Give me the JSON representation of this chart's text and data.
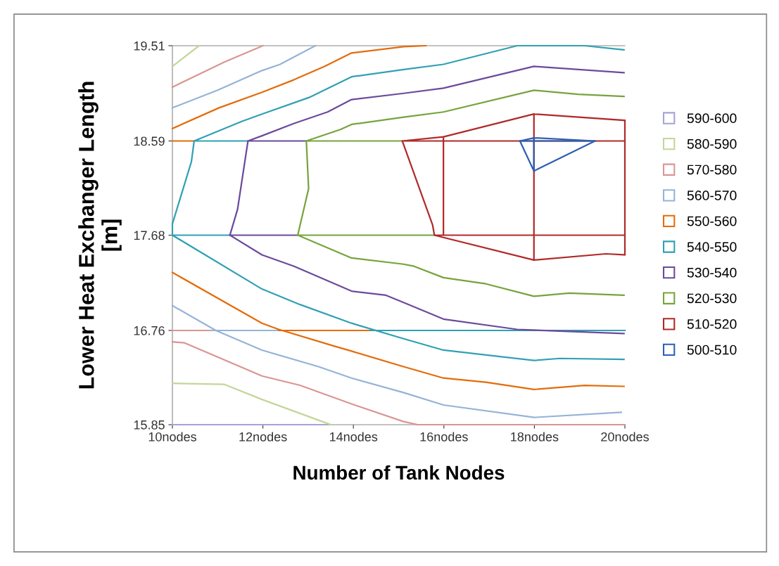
{
  "chart_data": {
    "type": "line",
    "xlabel": "Number of Tank Nodes",
    "ylabel": "Lower Heat Exchanger Length\n[m]",
    "xlim": [
      10,
      20
    ],
    "xticks": [
      {
        "value": 10,
        "label": "10nodes"
      },
      {
        "value": 12,
        "label": "12nodes"
      },
      {
        "value": 14,
        "label": "14nodes"
      },
      {
        "value": 16,
        "label": "16nodes"
      },
      {
        "value": 18,
        "label": "18nodes"
      },
      {
        "value": 20,
        "label": "20nodes"
      }
    ],
    "ylim": [
      15.85,
      19.51
    ],
    "yticks": [
      15.85,
      16.76,
      17.68,
      18.59,
      19.51
    ],
    "series": [
      {
        "name": "590-600",
        "color": "#a6a3d6",
        "x": [
          10,
          13.5
        ],
        "values": [
          15.85,
          15.85
        ]
      },
      {
        "name": "580-590",
        "color": "#c3d69b",
        "x": [
          10,
          10.59,
          null,
          10,
          11.14,
          12.0,
          13.5
        ],
        "values": [
          19.31,
          19.51,
          null,
          16.25,
          16.24,
          16.09,
          15.85
        ]
      },
      {
        "name": "570-580",
        "color": "#d99694",
        "x": [
          10,
          11.14,
          12,
          null,
          10,
          10.27,
          11.98,
          12.82,
          13.96,
          15.11,
          15.42,
          20,
          null,
          10,
          10.86
        ],
        "values": [
          19.11,
          19.35,
          19.51,
          null,
          16.65,
          16.64,
          16.32,
          16.23,
          16.05,
          15.88,
          15.85,
          15.85,
          null,
          16.76,
          16.76
        ]
      },
      {
        "name": "560-570",
        "color": "#95b3d7",
        "x": [
          10,
          11.0,
          11.98,
          12.38,
          13.16,
          null,
          10,
          10.96,
          11.98,
          13.23,
          13.96,
          15.11,
          15.99,
          17.99,
          19.92,
          null,
          10.86,
          12.35
        ],
        "values": [
          18.91,
          19.08,
          19.27,
          19.33,
          19.51,
          null,
          17.0,
          16.76,
          16.57,
          16.41,
          16.3,
          16.16,
          16.04,
          15.92,
          15.97,
          null,
          16.76,
          16.76
        ]
      },
      {
        "name": "550-560",
        "color": "#e46c0a",
        "x": [
          10,
          11.03,
          11.98,
          12.68,
          13.36,
          13.96,
          15.11,
          15.6,
          null,
          10,
          11.98,
          12.35,
          13.57,
          13.96,
          15.11,
          15.99,
          16.93,
          17.99,
          19.11,
          19.98,
          null,
          12.35,
          14.38,
          null,
          10,
          10.48
        ],
        "values": [
          18.71,
          18.91,
          19.06,
          19.18,
          19.31,
          19.44,
          19.5,
          19.51,
          null,
          17.32,
          16.83,
          16.77,
          16.61,
          16.56,
          16.41,
          16.3,
          16.26,
          16.19,
          16.23,
          16.22,
          null,
          16.76,
          16.76,
          null,
          18.59,
          18.59
        ]
      },
      {
        "name": "540-550",
        "color": "#31a0b4",
        "x": [
          10,
          10,
          10.42,
          10.48,
          11.54,
          11.98,
          13.02,
          13.96,
          15.11,
          15.99,
          17.62,
          19.11,
          19.98,
          null,
          10,
          11.98,
          12.82,
          13.96,
          14.11,
          15.11,
          15.99,
          17.99,
          18.56,
          19.98,
          null,
          14.38,
          20,
          null,
          10.48,
          11.67,
          null,
          10,
          11.27
        ],
        "values": [
          17.68,
          17.79,
          18.39,
          18.59,
          18.78,
          18.85,
          19.01,
          19.21,
          19.28,
          19.33,
          19.51,
          19.51,
          19.47,
          null,
          17.68,
          17.16,
          17.01,
          16.83,
          16.81,
          16.68,
          16.57,
          16.47,
          16.49,
          16.48,
          null,
          16.76,
          16.76,
          null,
          18.59,
          18.59,
          null,
          17.68,
          17.68
        ]
      },
      {
        "name": "530-540",
        "color": "#6b4a9c",
        "x": [
          11.27,
          11.44,
          11.67,
          11.98,
          12.69,
          13.43,
          13.96,
          15.11,
          15.99,
          17.99,
          19.98,
          null,
          11.27,
          11.98,
          12.69,
          13.96,
          14.72,
          15.11,
          15.99,
          17.62,
          19.98,
          null,
          11.67,
          12.96,
          null,
          11.27,
          12.77
        ],
        "values": [
          17.68,
          17.93,
          18.59,
          18.64,
          18.76,
          18.87,
          18.99,
          19.05,
          19.1,
          19.31,
          19.25,
          null,
          17.68,
          17.49,
          17.38,
          17.14,
          17.1,
          17.03,
          16.87,
          16.77,
          16.73,
          null,
          18.59,
          18.59,
          null,
          17.68,
          17.68
        ]
      },
      {
        "name": "520-530",
        "color": "#77a33c",
        "x": [
          12.77,
          13.01,
          12.96,
          13.71,
          13.96,
          15.11,
          15.99,
          17.99,
          18.97,
          19.98,
          null,
          12.77,
          13.96,
          15.11,
          15.34,
          15.99,
          16.93,
          17.99,
          18.77,
          19.98,
          null,
          12.96,
          15.08,
          null,
          12.77,
          15.79
        ],
        "values": [
          17.68,
          18.13,
          18.59,
          18.7,
          18.75,
          18.82,
          18.87,
          19.08,
          19.04,
          19.02,
          null,
          17.68,
          17.46,
          17.4,
          17.38,
          17.27,
          17.21,
          17.09,
          17.12,
          17.1,
          null,
          18.59,
          18.59,
          null,
          17.68,
          17.68
        ]
      },
      {
        "name": "510-520",
        "color": "#b02a2a",
        "x": [
          19.98,
          17.99,
          15.99,
          15.08,
          15.75,
          15.79,
          17.99,
          19.58,
          19.98,
          null,
          15.08,
          20,
          null,
          15.79,
          20,
          null,
          20,
          20,
          null,
          17.99,
          17.99,
          null,
          15.99,
          15.99
        ],
        "values": [
          18.79,
          18.85,
          18.63,
          18.59,
          17.78,
          17.68,
          17.44,
          17.5,
          17.49,
          null,
          18.59,
          18.59,
          null,
          17.68,
          17.68,
          null,
          17.49,
          18.79,
          null,
          17.44,
          18.85,
          null,
          17.68,
          18.63
        ]
      },
      {
        "name": "500-510",
        "color": "#2f5fb3",
        "x": [
          17.68,
          17.99,
          19.34,
          null,
          17.68,
          17.99,
          19.34,
          null,
          17.68,
          19.34,
          null,
          17.99,
          17.99
        ],
        "values": [
          18.59,
          18.62,
          18.59,
          null,
          18.59,
          18.3,
          18.59,
          null,
          18.59,
          18.59,
          null,
          18.3,
          18.62
        ]
      }
    ],
    "legend": "right",
    "marker": "none",
    "grid": false
  }
}
